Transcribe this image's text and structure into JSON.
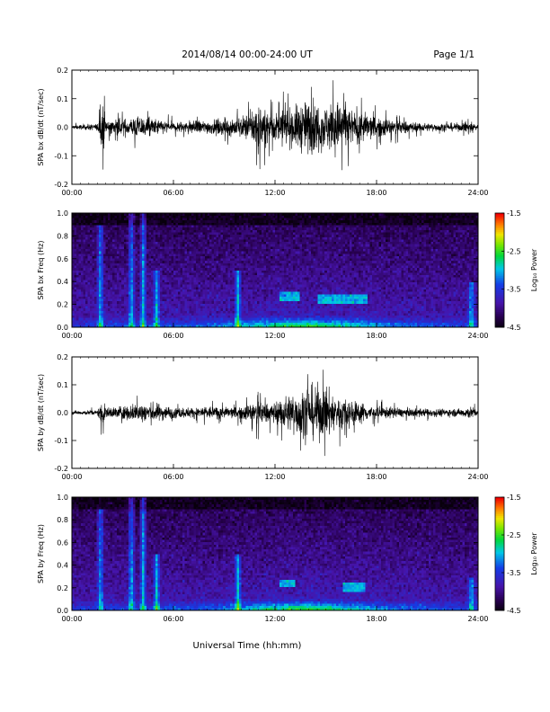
{
  "header": {
    "title": "2014/08/14  00:00-24:00 UT",
    "page": "Page 1/1"
  },
  "xlabel": "Universal Time (hh:mm)",
  "colorbar": {
    "label": "Log₁₀ Power",
    "ticks": [
      "-1.5",
      "-2.5",
      "-3.5",
      "-4.5"
    ],
    "range": [
      -4.5,
      -1.5
    ]
  },
  "chart_data": [
    {
      "type": "line",
      "ylabel": "SPA bx dB/dt (nT/sec)",
      "xlim": [
        0,
        24
      ],
      "ylim": [
        -0.2,
        0.2
      ],
      "x_ticks": [
        "00:00",
        "06:00",
        "12:00",
        "18:00",
        "24:00"
      ],
      "y_ticks": [
        "0.2",
        "0.1",
        "0.0",
        "-0.1",
        "-0.2"
      ],
      "envelope": {
        "hours": [
          0,
          1.5,
          1.85,
          2,
          3,
          4,
          5,
          6,
          7,
          8,
          9,
          10,
          10.5,
          11,
          11.5,
          12,
          12.5,
          13,
          13.5,
          14,
          14.5,
          15,
          15.5,
          16,
          16.5,
          17,
          17.5,
          18,
          19,
          20,
          21,
          22,
          23,
          23.5,
          24
        ],
        "amplitude": [
          0.015,
          0.025,
          0.16,
          0.06,
          0.06,
          0.08,
          0.06,
          0.04,
          0.05,
          0.05,
          0.06,
          0.08,
          0.1,
          0.2,
          0.12,
          0.1,
          0.13,
          0.14,
          0.18,
          0.2,
          0.18,
          0.16,
          0.2,
          0.18,
          0.13,
          0.12,
          0.1,
          0.08,
          0.06,
          0.04,
          0.03,
          0.03,
          0.03,
          0.06,
          0.02
        ]
      }
    },
    {
      "type": "heatmap",
      "ylabel": "SPA bx Freq (Hz)",
      "xlim": [
        0,
        24
      ],
      "ylim": [
        0,
        1
      ],
      "x_ticks": [
        "00:00",
        "06:00",
        "12:00",
        "18:00",
        "24:00"
      ],
      "y_ticks": [
        "1.0",
        "0.8",
        "0.6",
        "0.4",
        "0.2",
        "0.0"
      ],
      "value_label": "Log₁₀ Power",
      "zlim": [
        -4.5,
        -1.5
      ],
      "features": [
        {
          "hour": 1.7,
          "fmax": 0.9
        },
        {
          "hour": 3.5,
          "fmax": 1.0
        },
        {
          "hour": 4.2,
          "fmax": 1.0
        },
        {
          "hour": 5.0,
          "fmax": 0.5
        },
        {
          "hour": 9.8,
          "fmax": 0.5
        },
        {
          "hour": 23.6,
          "fmax": 0.4
        }
      ],
      "bands": [
        {
          "start": 12.3,
          "end": 13.5,
          "freq": 0.27
        },
        {
          "start": 14.5,
          "end": 17.5,
          "freq": 0.25
        }
      ]
    },
    {
      "type": "line",
      "ylabel": "SPA by dB/dt (nT/sec)",
      "xlim": [
        0,
        24
      ],
      "ylim": [
        -0.2,
        0.2
      ],
      "x_ticks": [
        "00:00",
        "06:00",
        "12:00",
        "18:00",
        "24:00"
      ],
      "y_ticks": [
        "0.2",
        "0.1",
        "0.0",
        "-0.1",
        "-0.2"
      ],
      "envelope": {
        "hours": [
          0,
          1.5,
          1.8,
          2,
          3,
          3.5,
          4,
          5,
          6,
          7,
          8,
          9,
          10,
          10.5,
          11,
          11.5,
          12,
          12.5,
          13,
          13.5,
          14,
          14.5,
          15,
          15.5,
          16,
          16.5,
          17,
          17.5,
          18,
          19,
          20,
          21,
          22,
          23,
          23.5,
          24
        ],
        "amplitude": [
          0.015,
          0.02,
          0.1,
          0.04,
          0.05,
          0.06,
          0.08,
          0.07,
          0.04,
          0.04,
          0.05,
          0.04,
          0.05,
          0.07,
          0.1,
          0.07,
          0.08,
          0.12,
          0.15,
          0.18,
          0.2,
          0.2,
          0.2,
          0.14,
          0.12,
          0.1,
          0.08,
          0.06,
          0.05,
          0.04,
          0.03,
          0.03,
          0.03,
          0.03,
          0.05,
          0.02
        ]
      }
    },
    {
      "type": "heatmap",
      "ylabel": "SPA by Freq (Hz)",
      "xlim": [
        0,
        24
      ],
      "ylim": [
        0,
        1
      ],
      "x_ticks": [
        "00:00",
        "06:00",
        "12:00",
        "18:00",
        "24:00"
      ],
      "y_ticks": [
        "1.0",
        "0.8",
        "0.6",
        "0.4",
        "0.2",
        "0.0"
      ],
      "value_label": "Log₁₀ Power",
      "zlim": [
        -4.5,
        -1.5
      ],
      "features": [
        {
          "hour": 1.7,
          "fmax": 0.9
        },
        {
          "hour": 3.5,
          "fmax": 1.0
        },
        {
          "hour": 4.2,
          "fmax": 1.0
        },
        {
          "hour": 5.0,
          "fmax": 0.5
        },
        {
          "hour": 9.8,
          "fmax": 0.5
        },
        {
          "hour": 23.6,
          "fmax": 0.3
        }
      ],
      "bands": [
        {
          "start": 12.3,
          "end": 13.2,
          "freq": 0.24
        },
        {
          "start": 16.0,
          "end": 17.3,
          "freq": 0.2
        }
      ]
    }
  ]
}
